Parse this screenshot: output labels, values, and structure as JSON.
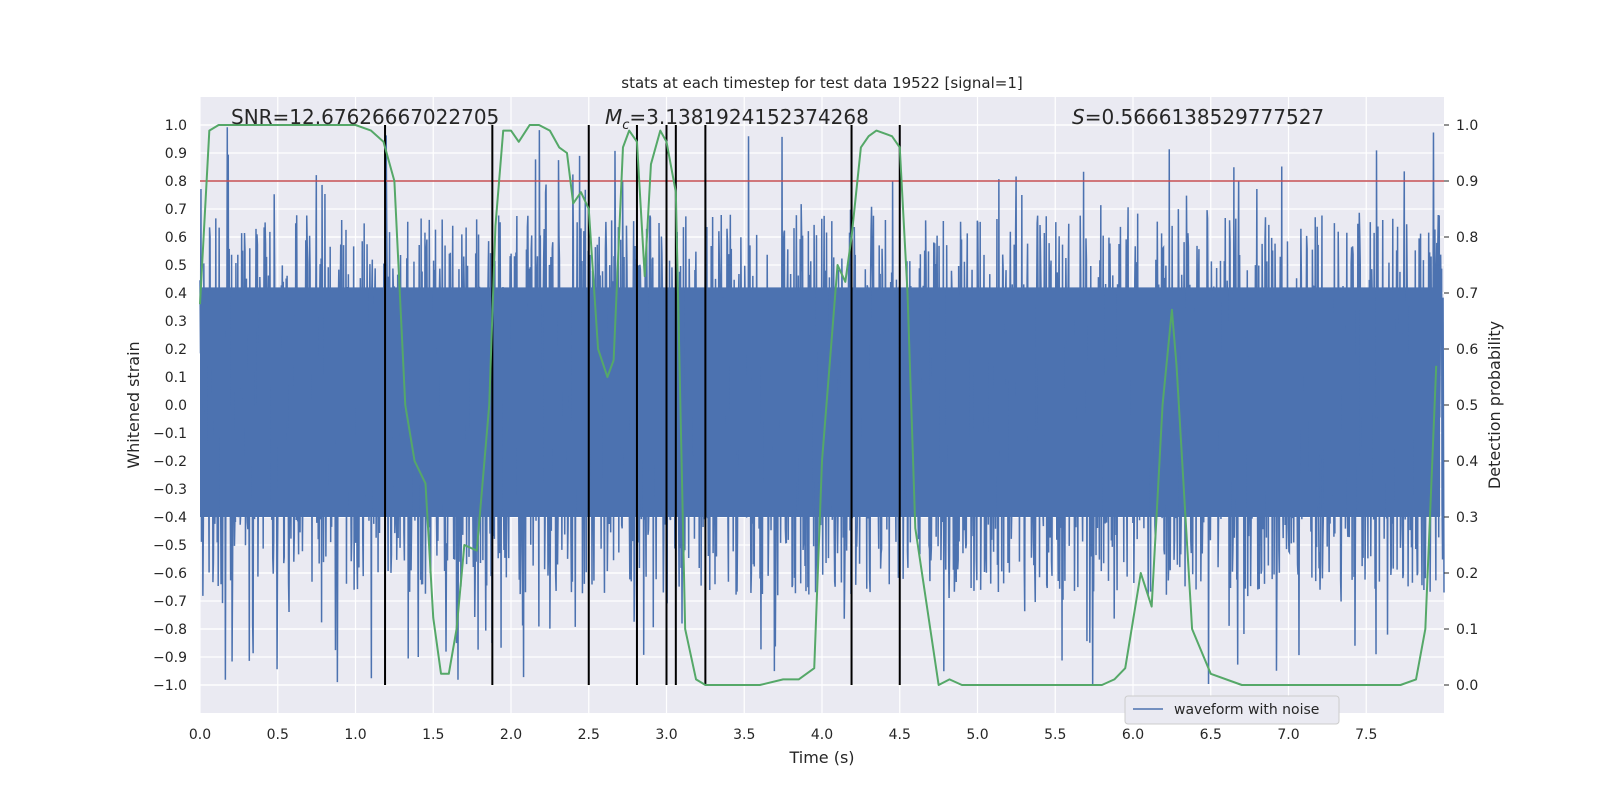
{
  "chart_data": {
    "type": "line",
    "title": "stats at each timestep for test data 19522 [signal=1]",
    "xlabel": "Time (s)",
    "ylabel_left": "Whitened strain",
    "ylabel_right": "Detection probability",
    "xlim": [
      0,
      8
    ],
    "ylim_left": [
      -1.1,
      1.1
    ],
    "ylim_right": [
      -0.05,
      1.05
    ],
    "x_ticks": [
      0,
      0.5,
      1,
      1.5,
      2,
      2.5,
      3,
      3.5,
      4,
      4.5,
      5,
      5.5,
      6,
      6.5,
      7,
      7.5
    ],
    "x_tick_labels": [
      "0.0",
      "0.5",
      "1.0",
      "1.5",
      "2.0",
      "2.5",
      "3.0",
      "3.5",
      "4.0",
      "4.5",
      "5.0",
      "5.5",
      "6.0",
      "6.5",
      "7.0",
      "7.5"
    ],
    "y_left_ticks": [
      1.0,
      0.9,
      0.8,
      0.7,
      0.6,
      0.5,
      0.4,
      0.3,
      0.2,
      0.1,
      0.0,
      -0.1,
      -0.2,
      -0.3,
      -0.4,
      -0.5,
      -0.6,
      -0.7,
      -0.8,
      -0.9,
      -1.0
    ],
    "y_left_tick_labels": [
      "1.0",
      "0.9",
      "0.8",
      "0.7",
      "0.6",
      "0.5",
      "0.4",
      "0.3",
      "0.2",
      "0.1",
      "0.0",
      "−0.1",
      "−0.2",
      "−0.3",
      "−0.4",
      "−0.5",
      "−0.6",
      "−0.7",
      "−0.8",
      "−0.9",
      "−1.0"
    ],
    "y_right_ticks": [
      1.0,
      0.9,
      0.8,
      0.7,
      0.6,
      0.5,
      0.4,
      0.3,
      0.2,
      0.1,
      0.0
    ],
    "y_right_tick_labels": [
      "1.0",
      "0.9",
      "0.8",
      "0.7",
      "0.6",
      "0.5",
      "0.4",
      "0.3",
      "0.2",
      "0.1",
      "0.0"
    ],
    "grid": true,
    "legend_position": "lower-right",
    "annotations": {
      "snr": "SNR=12.67626667022705",
      "mc_symbol": "M",
      "mc_subscript": "c",
      "mc_value": "=3.1381924152374268",
      "s_symbol": "S",
      "s_value": "=0.5666138529777527"
    },
    "threshold": {
      "value": 0.8,
      "color": "#c44e52"
    },
    "event_lines": [
      1.19,
      1.88,
      2.5,
      2.81,
      3.0,
      3.06,
      3.25,
      4.19,
      4.5
    ],
    "series": [
      {
        "name": "waveform with noise",
        "axis": "left",
        "color": "#4c72b0",
        "envelope": {
          "core_low": -0.4,
          "core_high": 0.42,
          "spike_max": 1.0,
          "spike_min": -1.0
        }
      },
      {
        "axis": "right",
        "color": "#55a868",
        "x": [
          0,
          0.06,
          0.12,
          0.2,
          0.3,
          0.5,
          0.7,
          0.9,
          1.0,
          1.1,
          1.18,
          1.25,
          1.32,
          1.38,
          1.45,
          1.5,
          1.55,
          1.6,
          1.65,
          1.7,
          1.78,
          1.86,
          1.9,
          1.95,
          2.0,
          2.05,
          2.12,
          2.18,
          2.25,
          2.31,
          2.36,
          2.4,
          2.45,
          2.5,
          2.56,
          2.62,
          2.66,
          2.72,
          2.76,
          2.81,
          2.86,
          2.9,
          2.96,
          3.0,
          3.06,
          3.12,
          3.19,
          3.25,
          3.3,
          3.35,
          3.45,
          3.6,
          3.75,
          3.85,
          3.95,
          4.0,
          4.1,
          4.15,
          4.19,
          4.25,
          4.3,
          4.35,
          4.45,
          4.5,
          4.55,
          4.6,
          4.75,
          4.82,
          4.9,
          5.1,
          5.4,
          5.8,
          5.88,
          5.95,
          6.05,
          6.12,
          6.19,
          6.25,
          6.28,
          6.38,
          6.5,
          6.7,
          7.0,
          7.3,
          7.6,
          7.72,
          7.82,
          7.88,
          7.95
        ],
        "y": [
          0.68,
          0.99,
          1.0,
          1.0,
          1.0,
          1.0,
          1.0,
          1.0,
          1.0,
          0.99,
          0.97,
          0.9,
          0.5,
          0.4,
          0.36,
          0.12,
          0.02,
          0.02,
          0.1,
          0.25,
          0.24,
          0.5,
          0.82,
          0.99,
          0.99,
          0.97,
          1.0,
          1.0,
          0.99,
          0.96,
          0.95,
          0.86,
          0.88,
          0.85,
          0.6,
          0.55,
          0.58,
          0.96,
          0.99,
          0.97,
          0.73,
          0.93,
          0.99,
          0.97,
          0.88,
          0.1,
          0.01,
          0.0,
          0.0,
          0.0,
          0.0,
          0.0,
          0.01,
          0.01,
          0.03,
          0.4,
          0.75,
          0.72,
          0.8,
          0.96,
          0.98,
          0.99,
          0.98,
          0.96,
          0.7,
          0.28,
          0.0,
          0.01,
          0.0,
          0.0,
          0.0,
          0.0,
          0.01,
          0.03,
          0.2,
          0.14,
          0.5,
          0.67,
          0.57,
          0.1,
          0.02,
          0.0,
          0.0,
          0.0,
          0.0,
          0.0,
          0.01,
          0.1,
          0.57
        ]
      }
    ]
  }
}
